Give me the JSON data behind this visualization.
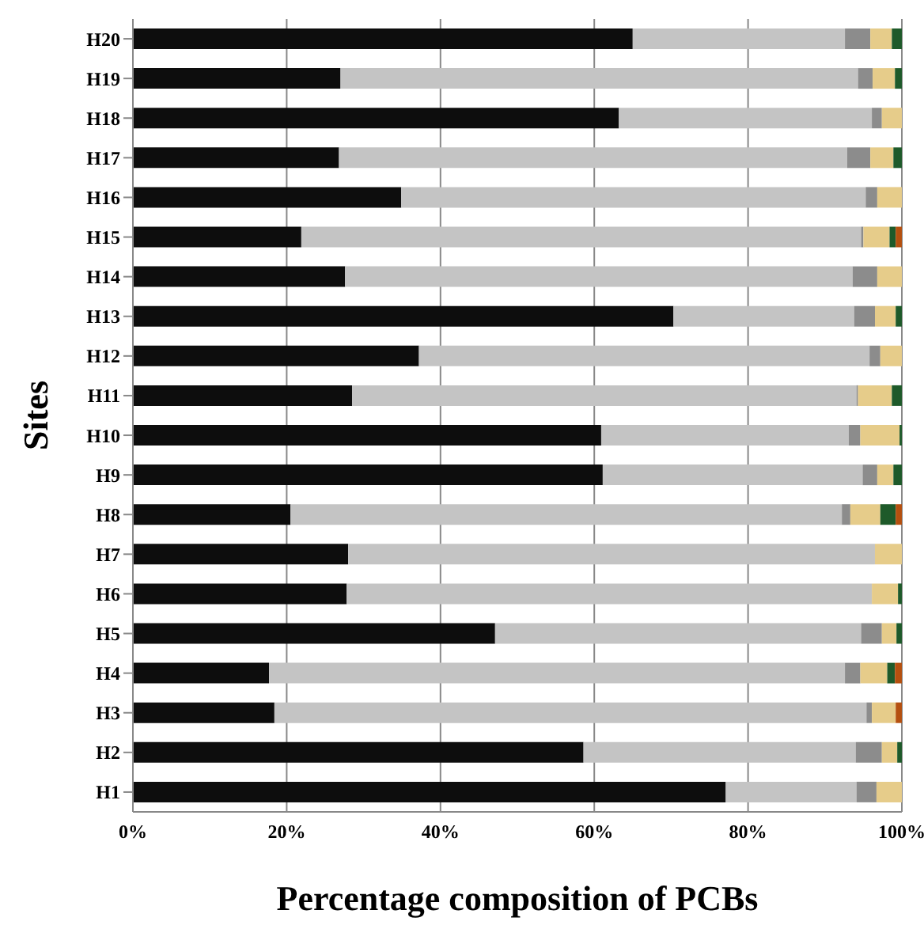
{
  "chart_data": {
    "type": "bar",
    "orientation": "horizontal",
    "stacked": true,
    "xlabel": "Percentage composition of PCBs",
    "ylabel": "Sites",
    "categories": [
      "H20",
      "H19",
      "H18",
      "H17",
      "H16",
      "H15",
      "H14",
      "H13",
      "H12",
      "H11",
      "H10",
      "H9",
      "H8",
      "H7",
      "H6",
      "H5",
      "H4",
      "H3",
      "H2",
      "H1"
    ],
    "series": [
      {
        "color": "#0d0d0d",
        "values": [
          65,
          27,
          63.2,
          26.8,
          34.9,
          21.9,
          27.6,
          70.3,
          37.2,
          28.5,
          60.9,
          61.1,
          20.5,
          28,
          27.8,
          47.1,
          17.7,
          18.4,
          58.6,
          77.1
        ]
      },
      {
        "color": "#c4c4c4",
        "values": [
          27.6,
          67.3,
          32.9,
          66.1,
          60.4,
          72.8,
          66,
          23.5,
          58.6,
          65.6,
          32.2,
          33.8,
          71.7,
          68.5,
          68.3,
          47.6,
          74.9,
          77,
          35.4,
          17
        ]
      },
      {
        "color": "#8c8c8c",
        "values": [
          3.3,
          1.9,
          1.3,
          3,
          1.5,
          0.3,
          3.2,
          2.7,
          1.4,
          0.2,
          1.5,
          1.9,
          1.1,
          0,
          0,
          2.7,
          2,
          0.7,
          3.4,
          2.6
        ]
      },
      {
        "color": "#e6cc8a",
        "values": [
          2.8,
          2.9,
          2.6,
          3,
          3.2,
          3.4,
          3.2,
          2.7,
          2.8,
          4.4,
          5.1,
          2.1,
          3.9,
          3.5,
          3.4,
          1.9,
          3.5,
          3.1,
          2,
          3.3
        ]
      },
      {
        "color": "#1e5a2a",
        "values": [
          1.3,
          0.9,
          0,
          1.1,
          0,
          0.8,
          0,
          0.8,
          0,
          1.3,
          0.3,
          1.1,
          2,
          0,
          0.5,
          0.7,
          1,
          0,
          0.6,
          0
        ]
      },
      {
        "color": "#b5500f",
        "values": [
          0,
          0,
          0,
          0,
          0,
          0.8,
          0,
          0,
          0,
          0,
          0,
          0,
          0.8,
          0,
          0,
          0,
          0.9,
          0.8,
          0,
          0
        ]
      }
    ],
    "xlim": [
      0,
      100
    ],
    "xticks": [
      {
        "value": 0,
        "label": "0%"
      },
      {
        "value": 20,
        "label": "20%"
      },
      {
        "value": 40,
        "label": "40%"
      },
      {
        "value": 60,
        "label": "60%"
      },
      {
        "value": 80,
        "label": "80%"
      },
      {
        "value": 100,
        "label": "100%"
      }
    ],
    "grid": "x",
    "legend": false
  }
}
